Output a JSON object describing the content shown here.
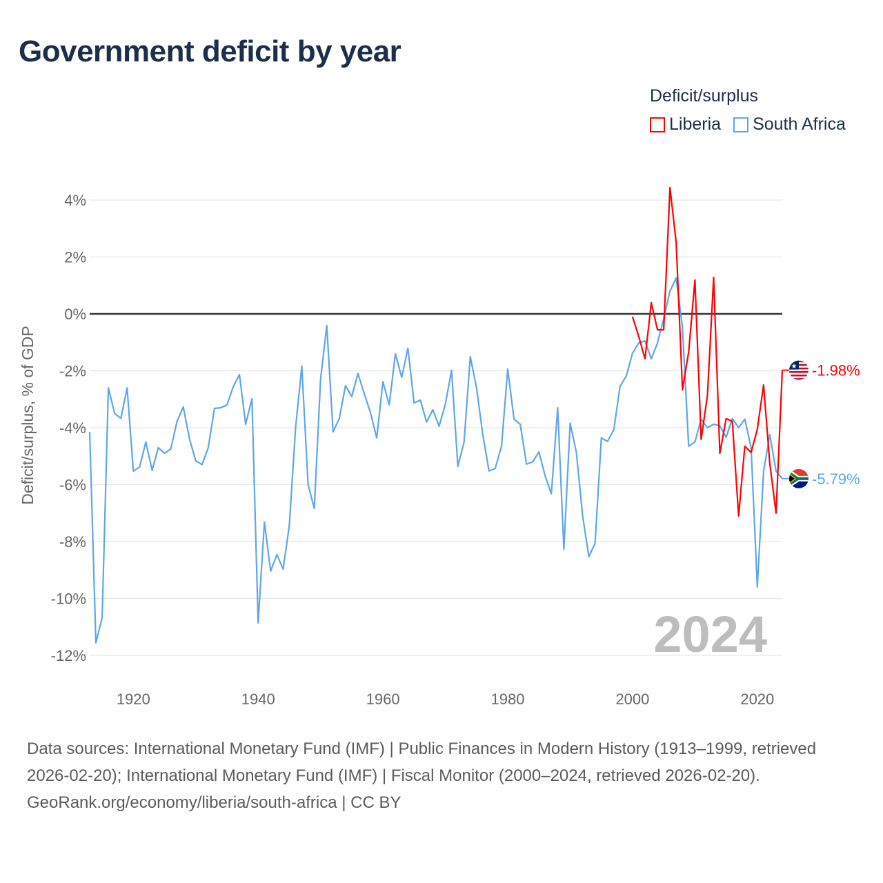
{
  "title": "Government deficit by year",
  "legend": {
    "title": "Deficit/surplus",
    "items": [
      {
        "name": "Liberia",
        "color": "#ff0000"
      },
      {
        "name": "South Africa",
        "color": "#5ea6ea"
      }
    ]
  },
  "chart_data": {
    "type": "line",
    "title": "Government deficit by year",
    "xlabel": "",
    "ylabel": "Deficit/surplus, % of GDP",
    "xlim": [
      1913,
      2024
    ],
    "ylim": [
      -13,
      4.6
    ],
    "x_ticks": [
      1920,
      1940,
      1960,
      1980,
      2000,
      2020
    ],
    "y_ticks": [
      4,
      2,
      0,
      -2,
      -4,
      -6,
      -8,
      -10,
      -12
    ],
    "y_tick_labels": [
      "4%",
      "2%",
      "0%",
      "-2%",
      "-4%",
      "-6%",
      "-8%",
      "-10%",
      "-12%"
    ],
    "grid": true,
    "year_watermark": "2024",
    "series": [
      {
        "name": "South Africa",
        "color": "#5ea6ea",
        "start_year": 1913,
        "end_label": "-5.79%",
        "values": [
          -4.15,
          -11.56,
          -10.67,
          -2.6,
          -3.5,
          -3.67,
          -2.6,
          -5.53,
          -5.38,
          -4.5,
          -5.5,
          -4.7,
          -4.9,
          -4.75,
          -3.78,
          -3.27,
          -4.4,
          -5.16,
          -5.3,
          -4.7,
          -3.32,
          -3.3,
          -3.2,
          -2.57,
          -2.13,
          -3.88,
          -2.98,
          -10.86,
          -7.32,
          -9.04,
          -8.46,
          -8.97,
          -7.44,
          -4.0,
          -1.84,
          -6.0,
          -6.84,
          -2.3,
          -0.41,
          -4.15,
          -3.68,
          -2.52,
          -2.9,
          -2.1,
          -2.8,
          -3.47,
          -4.36,
          -2.38,
          -3.2,
          -1.4,
          -2.23,
          -1.21,
          -3.13,
          -3.03,
          -3.8,
          -3.37,
          -3.95,
          -3.17,
          -1.98,
          -5.36,
          -4.5,
          -1.5,
          -2.6,
          -4.24,
          -5.52,
          -5.43,
          -4.65,
          -1.94,
          -3.7,
          -3.88,
          -5.28,
          -5.2,
          -4.85,
          -5.7,
          -6.32,
          -3.3,
          -8.27,
          -3.84,
          -4.87,
          -7.1,
          -8.53,
          -8.07,
          -4.36,
          -4.48,
          -4.07,
          -2.55,
          -2.18,
          -1.38,
          -1.02,
          -0.95,
          -1.58,
          -1.02,
          -0.17,
          0.8,
          1.26,
          -0.48,
          -4.65,
          -4.5,
          -3.7,
          -4.0,
          -3.88,
          -3.93,
          -4.34,
          -3.68,
          -4.0,
          -3.7,
          -4.7,
          -9.6,
          -5.53,
          -4.24,
          -5.53,
          -5.79
        ]
      },
      {
        "name": "Liberia",
        "color": "#ff0000",
        "start_year": 2000,
        "end_label": "-1.98%",
        "values": [
          -0.1,
          -0.8,
          -1.58,
          0.39,
          -0.56,
          -0.56,
          4.44,
          2.5,
          -2.67,
          -1.33,
          1.19,
          -4.41,
          -2.86,
          1.28,
          -4.9,
          -3.68,
          -3.78,
          -7.1,
          -4.65,
          -4.87,
          -4.05,
          -2.5,
          -5.26,
          -7.0,
          -1.98
        ]
      }
    ]
  },
  "footer": {
    "sources": "Data sources: International Monetary Fund (IMF) | Public Finances in Modern History (1913–1999, retrieved 2026-02-20); International Monetary Fund (IMF) | Fiscal Monitor (2000–2024, retrieved 2026-02-20).",
    "credit": "GeoRank.org/economy/liberia/south-africa | CC BY"
  }
}
